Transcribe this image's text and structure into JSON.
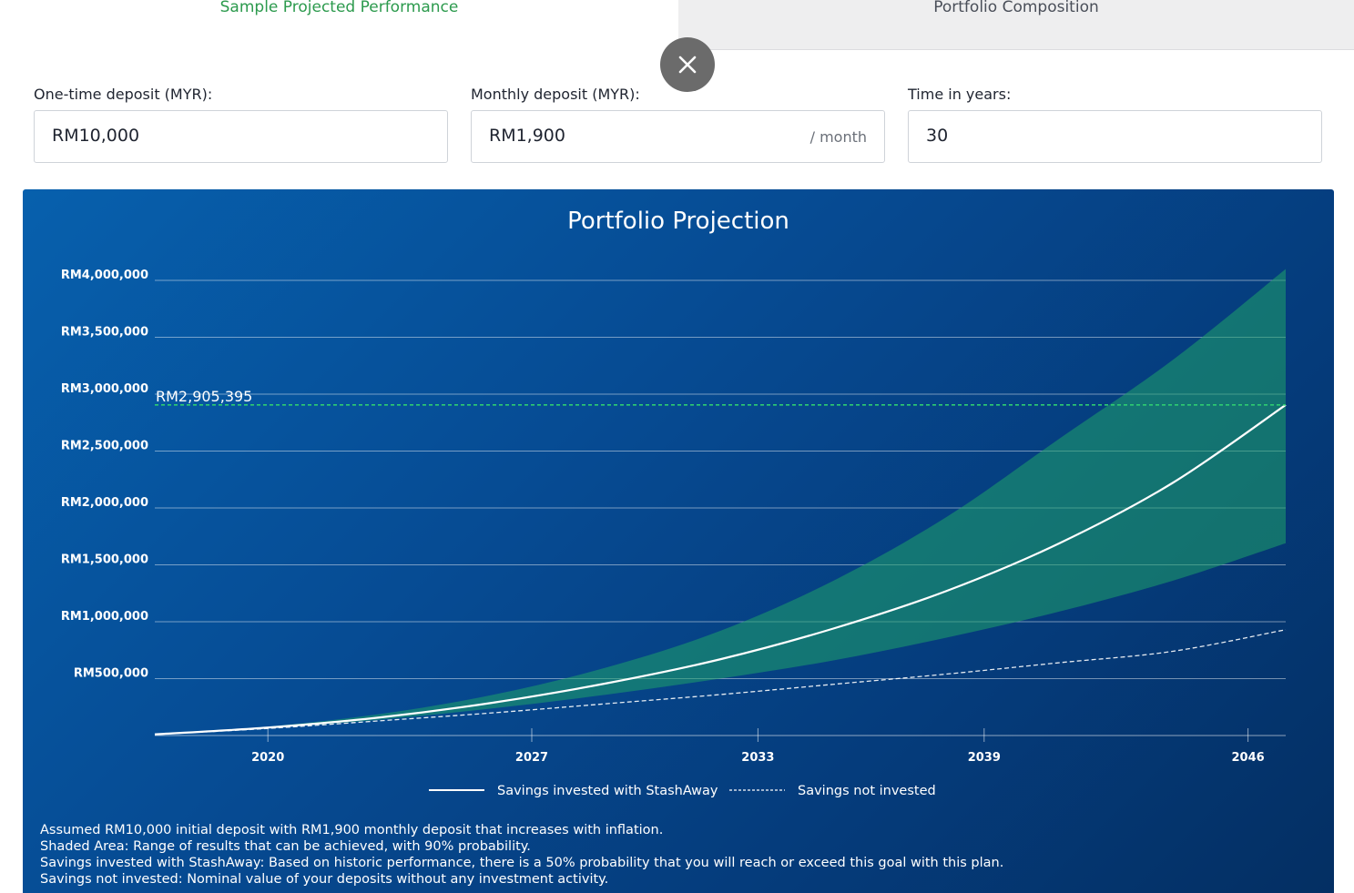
{
  "tabs": [
    {
      "label": "Sample Projected Performance",
      "active": true
    },
    {
      "label": "Portfolio Composition",
      "active": false
    }
  ],
  "close_icon": "close-icon",
  "inputs": {
    "one_time": {
      "label": "One-time deposit (MYR):",
      "value": "RM10,000"
    },
    "monthly": {
      "label": "Monthly deposit (MYR):",
      "value": "RM1,900",
      "suffix": "/ month"
    },
    "years": {
      "label": "Time in years:",
      "value": "30"
    }
  },
  "colors": {
    "tab_active_text": "#2c9a4d",
    "panel_bg": "#064b93",
    "band_fill": "#1fa36a",
    "goal_line": "#2ecc71",
    "line": "#ffffff"
  },
  "chart_data": {
    "type": "area",
    "title": "Portfolio Projection",
    "xlabel": "",
    "ylabel": "",
    "xlim": [
      2017,
      2047
    ],
    "ylim": [
      0,
      4000000
    ],
    "x_ticks": [
      2020,
      2027,
      2033,
      2039,
      2046
    ],
    "y_ticks": [
      500000,
      1000000,
      1500000,
      2000000,
      2500000,
      3000000,
      3500000,
      4000000
    ],
    "y_tick_labels": [
      "RM500,000",
      "RM1,000,000",
      "RM1,500,000",
      "RM2,000,000",
      "RM2,500,000",
      "RM3,000,000",
      "RM3,500,000",
      "RM4,000,000"
    ],
    "grid": true,
    "goal_value": 2905395,
    "goal_label": "RM2,905,395",
    "series": [
      {
        "name": "Savings invested with StashAway",
        "style": "solid",
        "x": [
          2017,
          2020,
          2023,
          2026,
          2029,
          2032,
          2035,
          2038,
          2041,
          2044,
          2047
        ],
        "values": [
          10000,
          70000,
          160000,
          290000,
          460000,
          670000,
          940000,
          1270000,
          1690000,
          2220000,
          2905395
        ]
      },
      {
        "name": "Savings not invested",
        "style": "dashed",
        "x": [
          2017,
          2020,
          2023,
          2026,
          2029,
          2032,
          2035,
          2038,
          2041,
          2044,
          2047
        ],
        "values": [
          10000,
          62000,
          130000,
          200000,
          280000,
          360000,
          450000,
          540000,
          640000,
          740000,
          930000
        ]
      }
    ],
    "band": {
      "label": "Shaded Area",
      "x": [
        2017,
        2020,
        2023,
        2026,
        2029,
        2032,
        2035,
        2038,
        2041,
        2044,
        2047
      ],
      "lower": [
        10000,
        65000,
        140000,
        240000,
        360000,
        500000,
        660000,
        860000,
        1090000,
        1360000,
        1690000
      ],
      "upper": [
        10000,
        78000,
        190000,
        360000,
        600000,
        920000,
        1360000,
        1920000,
        2610000,
        3300000,
        4100000
      ]
    },
    "legend": [
      {
        "label": "Savings invested with StashAway",
        "style": "solid"
      },
      {
        "label": "Savings not invested",
        "style": "dashed"
      }
    ],
    "legend_position": "bottom"
  },
  "footnotes": [
    "Assumed RM10,000 initial deposit with RM1,900 monthly deposit that increases with inflation.",
    "Shaded Area: Range of results that can be achieved, with 90% probability.",
    "Savings invested with StashAway: Based on historic performance, there is a 50% probability that you will reach or exceed this goal with this plan.",
    "Savings not invested: Nominal value of your deposits without any investment activity."
  ]
}
